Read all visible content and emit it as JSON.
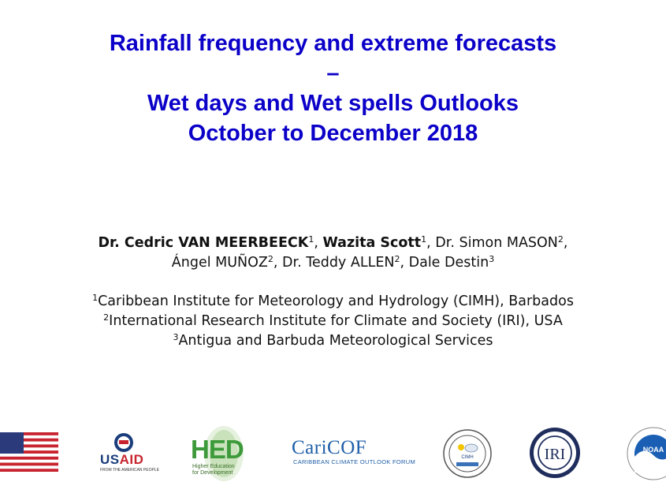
{
  "title": {
    "line1": "Rainfall frequency and extreme forecasts",
    "line2": "–",
    "line3": "Wet days and Wet spells Outlooks",
    "line4": "October to December 2018"
  },
  "authors": {
    "a1_name": "Dr. Cedric VAN MEERBEECK",
    "a1_sup": "1",
    "a2_name": "Wazita Scott",
    "a2_sup": "1",
    "a3_name": "Dr. Simon MASON",
    "a3_sup": "2",
    "a4_name": "Ángel MUÑOZ",
    "a4_sup": "2",
    "a5_name": "Dr. Teddy ALLEN",
    "a5_sup": "2",
    "a6_name": "Dale Destin",
    "a6_sup": "3",
    "sep": ", "
  },
  "affiliations": [
    {
      "sup": "1",
      "text": "Caribbean Institute for Meteorology and Hydrology (CIMH), Barbados"
    },
    {
      "sup": "2",
      "text": "International Research Institute for Climate and Society (IRI), USA"
    },
    {
      "sup": "3",
      "text": "Antigua and Barbuda Meteorological Services"
    }
  ],
  "logos": {
    "usaid": {
      "name": "USAID",
      "tagline": "FROM THE AMERICAN PEOPLE"
    },
    "hed": {
      "name": "HED",
      "tagline": "Higher Education for Development"
    },
    "caricof": {
      "name": "CariCOF",
      "tagline": "CARIBBEAN CLIMATE OUTLOOK FORUM"
    },
    "cimh": {
      "name": "CIMH"
    },
    "iri": {
      "name": "IRI"
    },
    "noaa": {
      "name": "NOAA"
    }
  },
  "colors": {
    "title": "#0b00c8",
    "text": "#111111"
  }
}
